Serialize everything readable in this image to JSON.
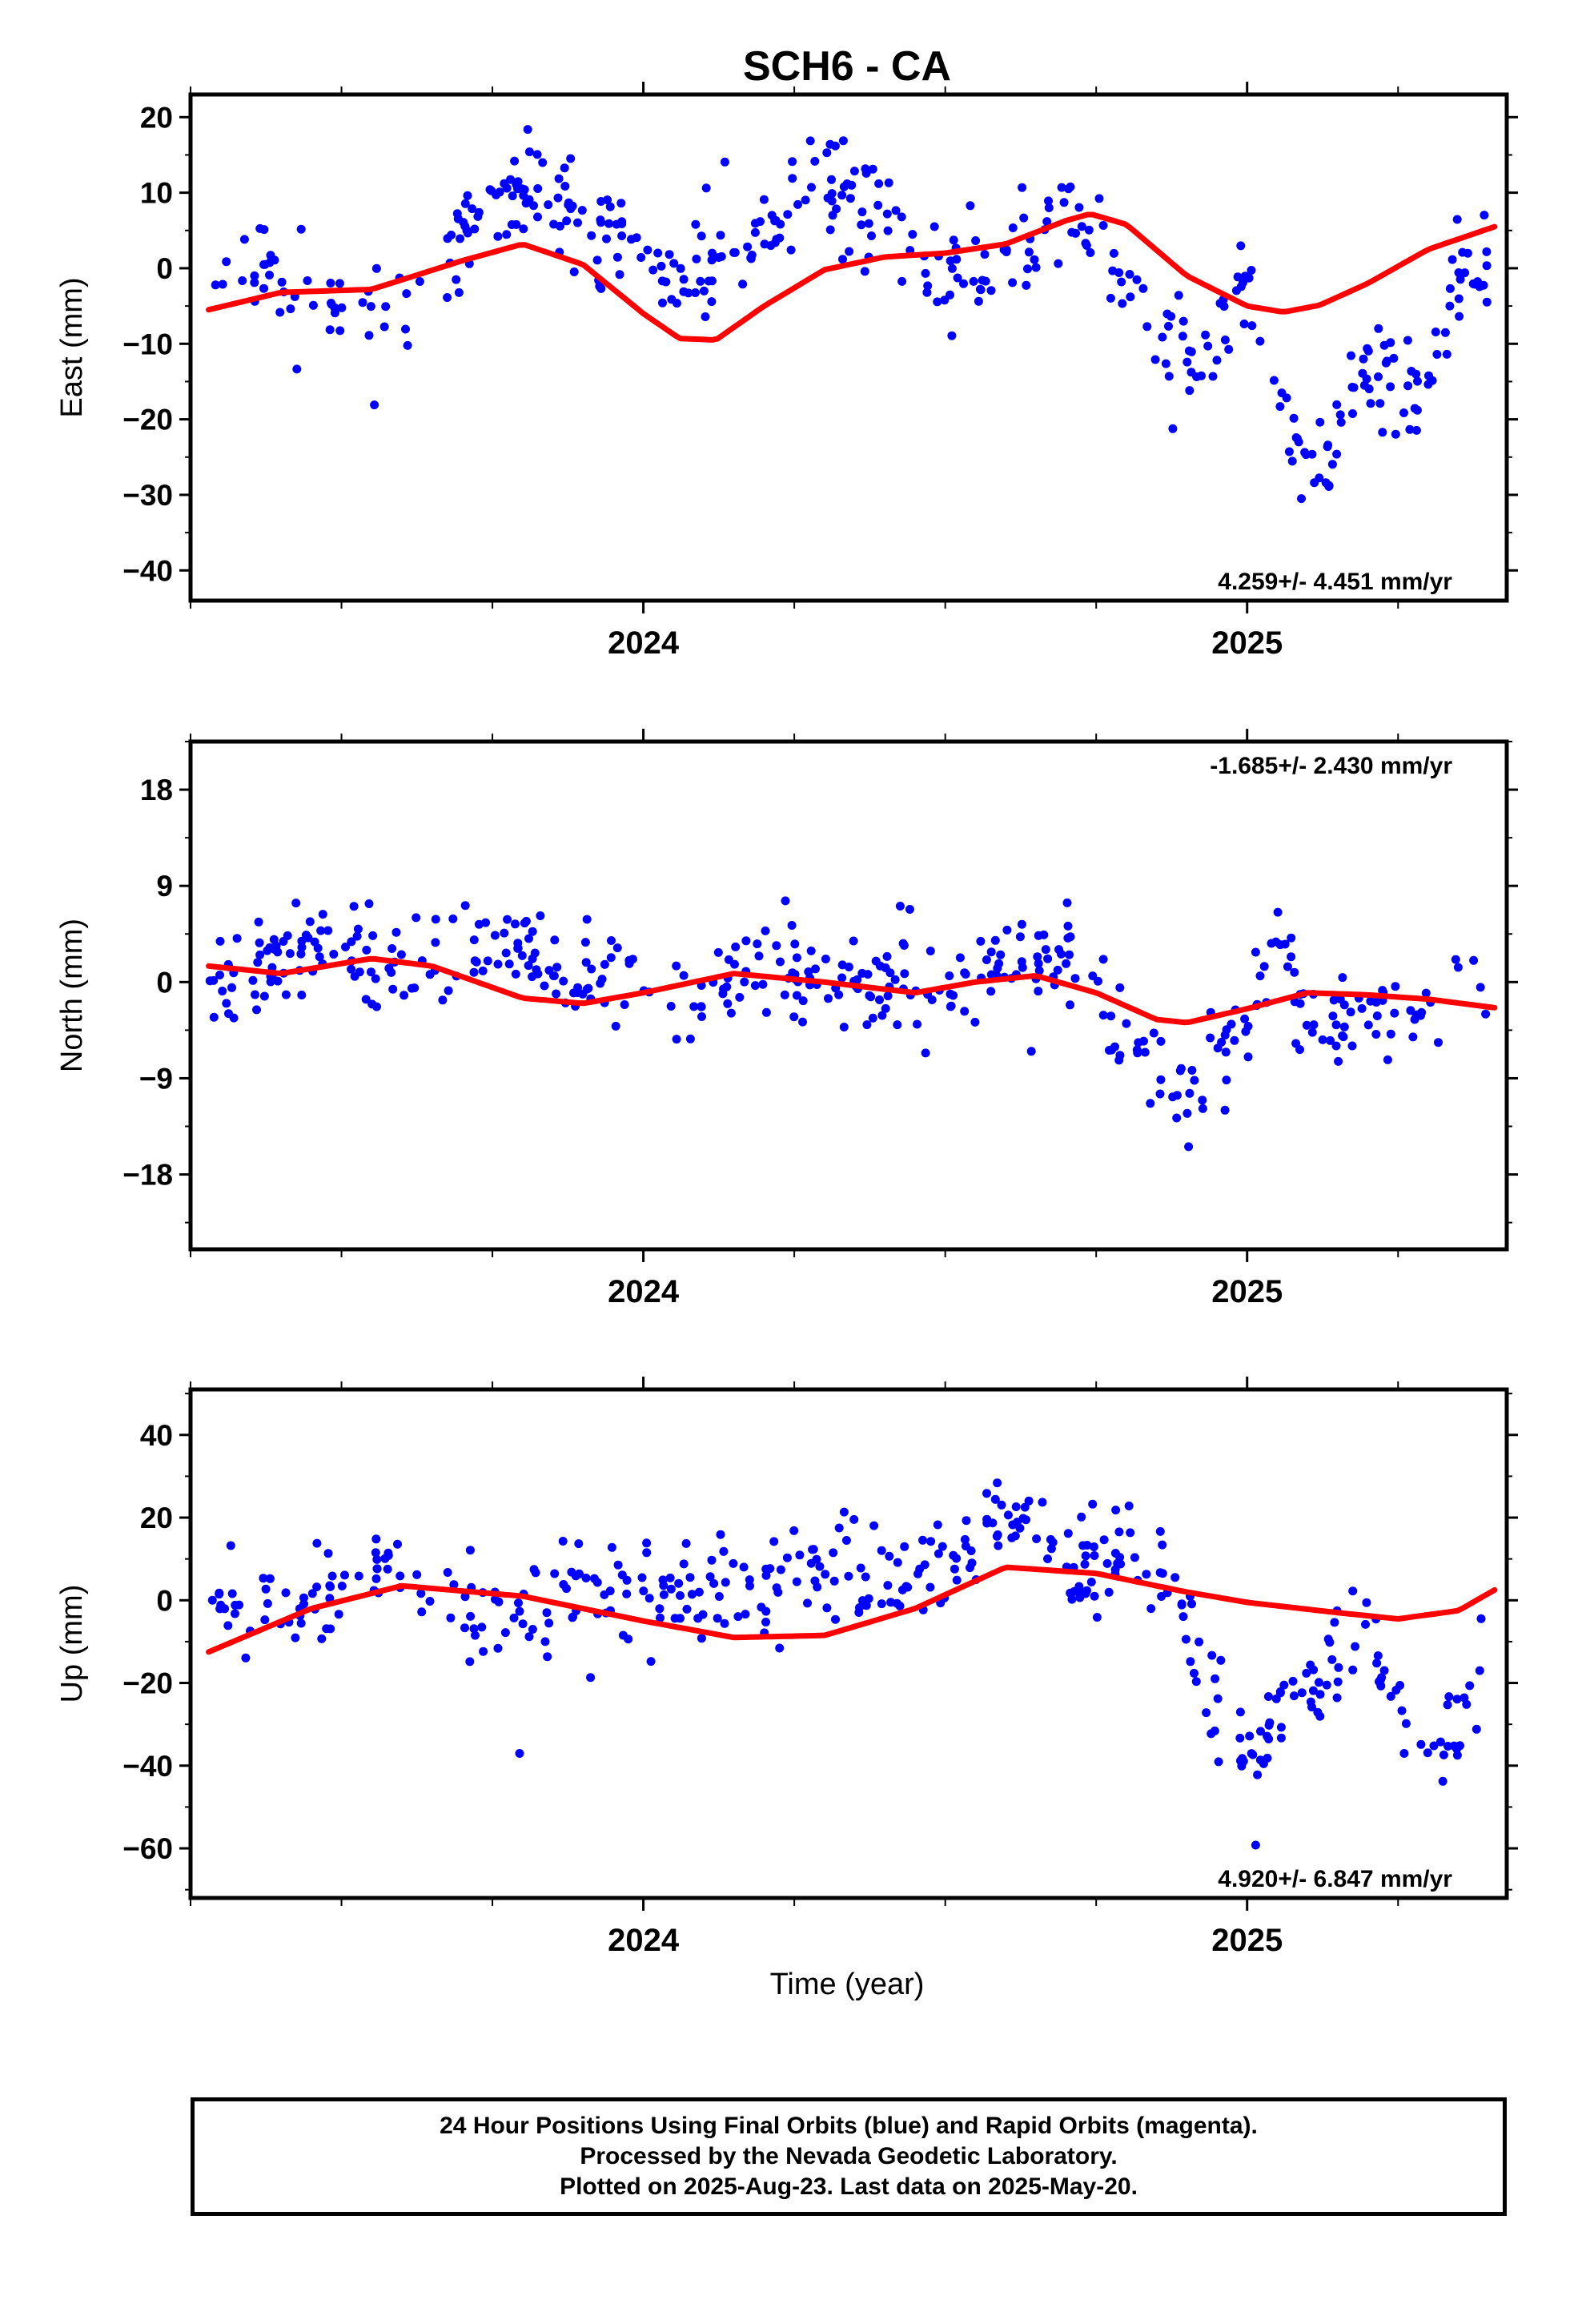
{
  "title": "SCH6 - CA",
  "xlabel": "Time (year)",
  "footer": {
    "line1": "24 Hour Positions Using Final Orbits (blue) and Rapid Orbits (magenta).",
    "line2": "Processed by the Nevada Geodetic Laboratory.",
    "line3": "Plotted on 2025-Aug-23. Last data on 2025-May-20."
  },
  "colors": {
    "points": "#0000ff",
    "fit": "#ff0000",
    "frame": "#000000"
  },
  "chart_data": [
    {
      "type": "scatter",
      "ylabel": "East (mm)",
      "rate_label": "4.259+/- 4.451 mm/yr",
      "rate_position": "bottom-right",
      "xlim": [
        2023.25,
        2025.43
      ],
      "ylim": [
        -44,
        23
      ],
      "yticks": [
        20,
        10,
        0,
        -10,
        -20,
        -30,
        -40
      ],
      "xticks_major": [
        2024,
        2025
      ],
      "x_tick_labels": [
        "2024",
        "2025"
      ],
      "x_minor_step": 0.25,
      "y_minor_step": 5,
      "fit_series": {
        "name": "model",
        "x": [
          2023.28,
          2023.4,
          2023.55,
          2023.7,
          2023.8,
          2023.9,
          2024.0,
          2024.06,
          2024.12,
          2024.2,
          2024.3,
          2024.4,
          2024.5,
          2024.6,
          2024.7,
          2024.74,
          2024.8,
          2024.9,
          2025.0,
          2025.06,
          2025.12,
          2025.2,
          2025.3,
          2025.41
        ],
        "y": [
          -5.5,
          -3.2,
          -2.8,
          1.0,
          3.2,
          0.5,
          -6.0,
          -9.3,
          -9.5,
          -5.0,
          -0.2,
          1.5,
          2.0,
          3.2,
          6.3,
          7.2,
          5.8,
          -1.0,
          -5.0,
          -5.8,
          -4.9,
          -2.0,
          2.5,
          5.5
        ]
      },
      "points": {
        "name": "24 Hour Positions",
        "anchors_x": [
          2023.28,
          2023.35,
          2023.45,
          2023.6,
          2023.7,
          2023.8,
          2023.9,
          2024.0,
          2024.05,
          2024.1,
          2024.2,
          2024.3,
          2024.4,
          2024.45,
          2024.55,
          2024.6,
          2024.7,
          2024.75,
          2024.85,
          2024.92,
          2025.0,
          2025.05,
          2025.1,
          2025.15,
          2025.2,
          2025.3,
          2025.35,
          2025.4
        ],
        "anchors_y": [
          -1,
          2,
          -6,
          -5,
          5,
          12,
          6,
          3,
          -3,
          0,
          5,
          10,
          6,
          0,
          -1,
          2,
          6,
          3,
          -6,
          -12,
          -3,
          -15,
          -28,
          -22,
          -13,
          -17,
          -2,
          2
        ],
        "spread": 5.5,
        "count": 430,
        "seed": 11
      }
    },
    {
      "type": "scatter",
      "ylabel": "North (mm)",
      "rate_label": "-1.685+/- 2.430 mm/yr",
      "rate_position": "top-right",
      "xlim": [
        2023.25,
        2025.43
      ],
      "ylim": [
        -25,
        22.5
      ],
      "yticks": [
        18,
        9,
        0,
        -9,
        -18
      ],
      "xticks_major": [
        2024,
        2025
      ],
      "x_tick_labels": [
        "2024",
        "2025"
      ],
      "x_minor_step": 0.25,
      "y_minor_step": 4.5,
      "fit_series": {
        "name": "model",
        "x": [
          2023.28,
          2023.4,
          2023.55,
          2023.65,
          2023.8,
          2023.9,
          2024.0,
          2024.15,
          2024.3,
          2024.45,
          2024.55,
          2024.65,
          2024.75,
          2024.85,
          2024.9,
          2025.0,
          2025.1,
          2025.2,
          2025.3,
          2025.41
        ],
        "y": [
          1.5,
          0.8,
          2.2,
          1.5,
          -1.5,
          -2.0,
          -1.0,
          0.8,
          0.0,
          -1.0,
          0.0,
          0.6,
          -1.0,
          -3.5,
          -3.8,
          -2.5,
          -1.0,
          -1.2,
          -1.6,
          -2.4
        ]
      },
      "points": {
        "name": "24 Hour Positions",
        "anchors_x": [
          2023.28,
          2023.35,
          2023.45,
          2023.6,
          2023.75,
          2023.9,
          2024.0,
          2024.1,
          2024.2,
          2024.35,
          2024.5,
          2024.6,
          2024.7,
          2024.8,
          2024.9,
          2025.0,
          2025.05,
          2025.1,
          2025.2,
          2025.3,
          2025.4
        ],
        "anchors_y": [
          -2,
          1,
          3,
          2,
          4,
          0,
          1,
          -2,
          2,
          0,
          -1,
          2,
          2,
          -5,
          -11,
          -4,
          6,
          -4,
          -2,
          -5,
          1
        ],
        "spread": 3.5,
        "count": 430,
        "seed": 23
      }
    },
    {
      "type": "scatter",
      "ylabel": "Up (mm)",
      "rate_label": "4.920+/- 6.847 mm/yr",
      "rate_position": "bottom-right",
      "xlim": [
        2023.25,
        2025.43
      ],
      "ylim": [
        -72,
        51
      ],
      "yticks": [
        40,
        20,
        0,
        -20,
        -40,
        -60
      ],
      "xticks_major": [
        2024,
        2025
      ],
      "x_tick_labels": [
        "2024",
        "2025"
      ],
      "x_minor_step": 0.25,
      "y_minor_step": 10,
      "fit_series": {
        "name": "model",
        "x": [
          2023.28,
          2023.45,
          2023.6,
          2023.8,
          2024.0,
          2024.15,
          2024.3,
          2024.45,
          2024.6,
          2024.75,
          2024.9,
          2025.0,
          2025.15,
          2025.25,
          2025.35,
          2025.41
        ],
        "y": [
          -12.5,
          -2.0,
          3.5,
          1.0,
          -5.0,
          -9.0,
          -8.5,
          -2.0,
          8.0,
          6.5,
          2.0,
          -0.5,
          -3.0,
          -4.5,
          -2.5,
          2.5
        ]
      },
      "points": {
        "name": "24 Hour Positions",
        "anchors_x": [
          2023.28,
          2023.4,
          2023.5,
          2023.6,
          2023.75,
          2023.9,
          2024.0,
          2024.1,
          2024.2,
          2024.3,
          2024.4,
          2024.5,
          2024.6,
          2024.7,
          2024.8,
          2024.88,
          2024.95,
          2025.0,
          2025.1,
          2025.2,
          2025.25,
          2025.32,
          2025.4
        ],
        "anchors_y": [
          2,
          -2,
          5,
          3,
          -2,
          2,
          0,
          5,
          2,
          8,
          5,
          10,
          20,
          8,
          12,
          2,
          -30,
          -35,
          -20,
          -5,
          -30,
          -40,
          -10
        ],
        "spread": 10,
        "count": 420,
        "seed": 37
      }
    }
  ]
}
